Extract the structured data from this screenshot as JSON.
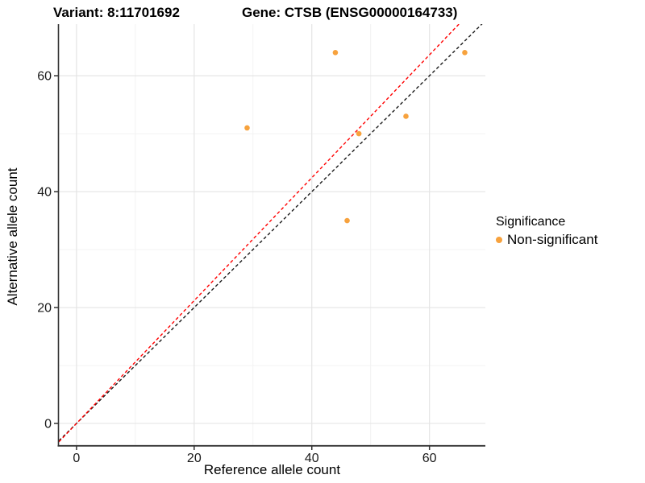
{
  "titles": {
    "variant": "Variant: 8:11701692",
    "gene": "Gene: CTSB (ENSG00000164733)"
  },
  "chart_data": {
    "type": "scatter",
    "xlabel": "Reference allele count",
    "ylabel": "Alternative allele count",
    "xlim": [
      -3.0,
      69.5
    ],
    "ylim": [
      -3.75,
      68.9
    ],
    "x_ticks": [
      0,
      20,
      40,
      60
    ],
    "y_ticks": [
      0,
      20,
      40,
      60
    ],
    "x_minor_ticks": [
      10,
      30,
      50
    ],
    "y_minor_ticks": [
      10,
      30,
      50
    ],
    "grid": true,
    "series": [
      {
        "name": "Non-significant",
        "color": "#F7A23D",
        "points": [
          {
            "x": 44,
            "y": 64
          },
          {
            "x": 66,
            "y": 64
          },
          {
            "x": 29,
            "y": 51
          },
          {
            "x": 56,
            "y": 53
          },
          {
            "x": 48,
            "y": 50
          },
          {
            "x": 46,
            "y": 35
          }
        ]
      }
    ],
    "ablines": [
      {
        "name": "identity-line",
        "slope": 1.0,
        "intercept": 0,
        "color": "#1A1A1A",
        "dash": "4,3"
      },
      {
        "name": "ratio-line",
        "slope": 1.06,
        "intercept": 0,
        "color": "#FF0000",
        "dash": "4,3"
      }
    ],
    "legend": {
      "title": "Significance",
      "position": "right",
      "items": [
        {
          "label": "Non-significant",
          "color": "#F7A23D"
        }
      ]
    }
  },
  "colors": {
    "background": "#FFFFFF",
    "grid_major": "#E3E3E3",
    "grid_minor": "#F1F1F1",
    "axis": "#333333",
    "tick_text": "#1A1A1A",
    "point": "#F7A23D"
  }
}
